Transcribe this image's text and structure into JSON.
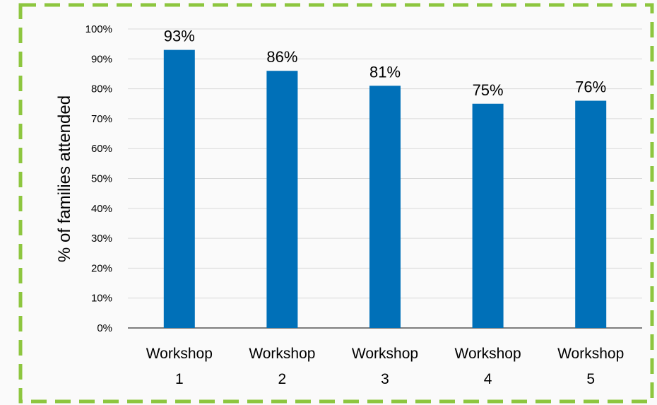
{
  "colors": {
    "background": "#fafafa",
    "border": "#8dc63f",
    "bar": "#0070b8",
    "grid": "#d9d9d9",
    "axis": "#000000"
  },
  "chart_data": {
    "type": "bar",
    "title": "",
    "xlabel": "",
    "ylabel": "% of families attended",
    "categories": [
      [
        "Workshop",
        "1"
      ],
      [
        "Workshop",
        "2"
      ],
      [
        "Workshop",
        "3"
      ],
      [
        "Workshop",
        "4"
      ],
      [
        "Workshop",
        "5"
      ]
    ],
    "values": [
      93,
      86,
      81,
      75,
      76
    ],
    "data_labels": [
      "93%",
      "86%",
      "81%",
      "75%",
      "76%"
    ],
    "ylim": [
      0,
      100
    ],
    "yticks": [
      0,
      10,
      20,
      30,
      40,
      50,
      60,
      70,
      80,
      90,
      100
    ],
    "ytick_labels": [
      "0%",
      "10%",
      "20%",
      "30%",
      "40%",
      "50%",
      "60%",
      "70%",
      "80%",
      "90%",
      "100%"
    ],
    "grid": true,
    "legend": "none"
  }
}
